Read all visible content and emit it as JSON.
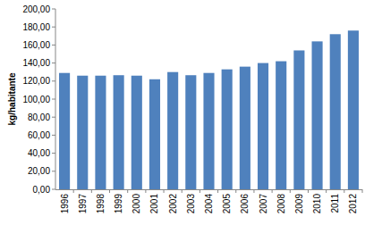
{
  "chart_data": {
    "type": "bar",
    "y_label": "kg/habitante",
    "categories": [
      "1996",
      "1997",
      "1998",
      "1999",
      "2000",
      "2001",
      "2002",
      "2003",
      "2004",
      "2005",
      "2006",
      "2007",
      "2008",
      "2009",
      "2010",
      "2011",
      "2012"
    ],
    "values": [
      129,
      126,
      126,
      126.5,
      126,
      122,
      130,
      126.5,
      129,
      133,
      136,
      140,
      142,
      154,
      164,
      172,
      176
    ],
    "color": "#4f81bd",
    "ylim": [
      0,
      200
    ],
    "yticks": [
      {
        "value": 0,
        "label": "0,00"
      },
      {
        "value": 20,
        "label": "20,00"
      },
      {
        "value": 40,
        "label": "40,00"
      },
      {
        "value": 60,
        "label": "60,00"
      },
      {
        "value": 80,
        "label": "80,00"
      },
      {
        "value": 100,
        "label": "100,00"
      },
      {
        "value": 120,
        "label": "120,00"
      },
      {
        "value": 140,
        "label": "140,00"
      },
      {
        "value": 160,
        "label": "160,00"
      },
      {
        "value": 180,
        "label": "180,00"
      },
      {
        "value": 200,
        "label": "200,00"
      }
    ],
    "grid": false
  }
}
